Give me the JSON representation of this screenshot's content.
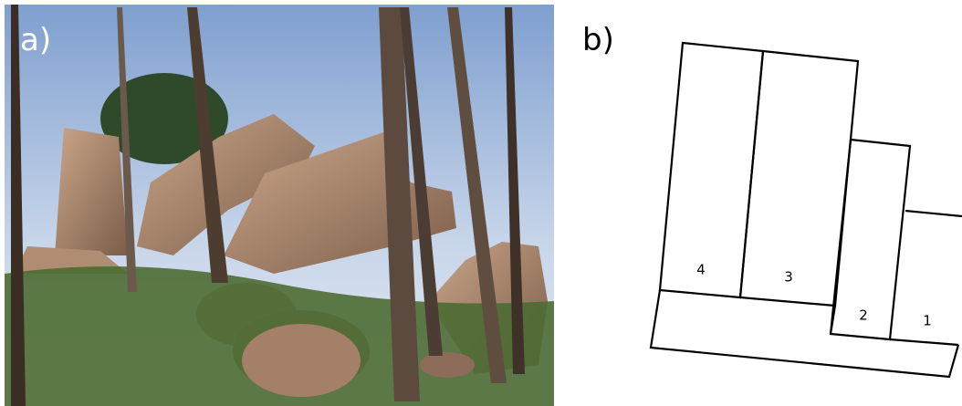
{
  "panels": [
    {
      "label": "a)"
    },
    {
      "label": "b)",
      "sections": [
        "4",
        "3",
        "2",
        "1"
      ]
    }
  ]
}
